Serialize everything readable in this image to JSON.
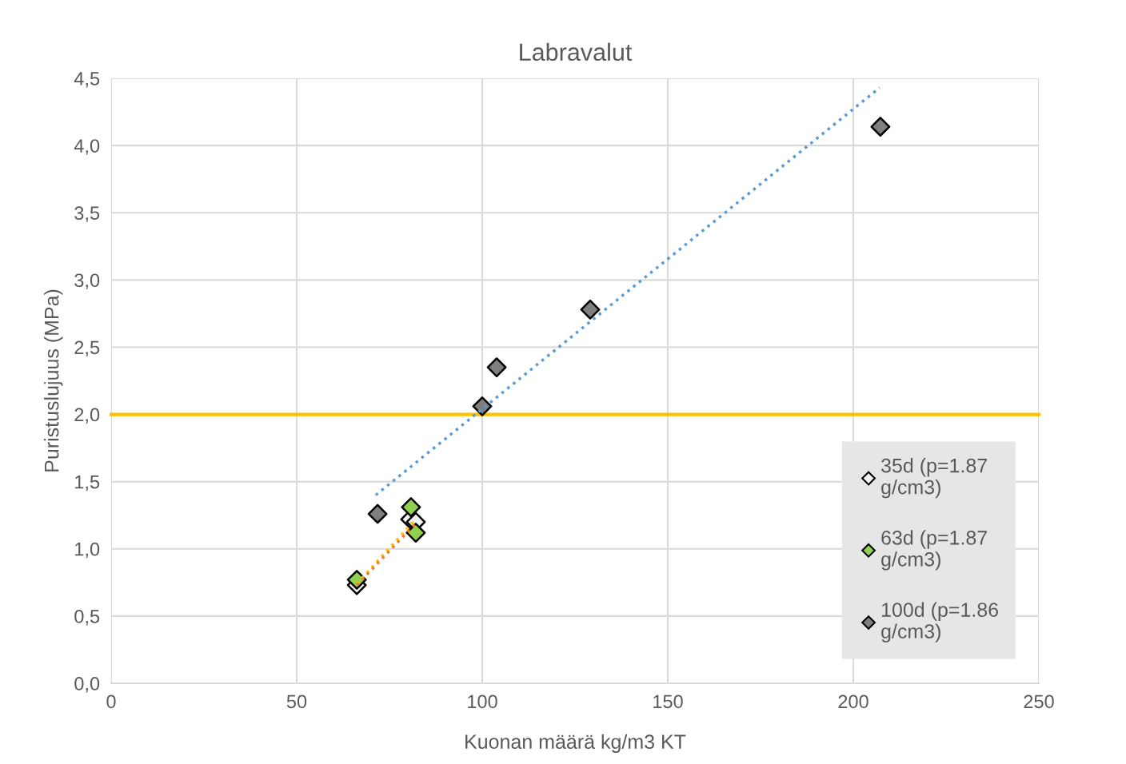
{
  "chart_data": {
    "type": "scatter",
    "title": "Labravalut",
    "xlabel": "Kuonan määrä kg/m3 KT",
    "ylabel": "Puristuslujuus (MPa)",
    "xlim": [
      0,
      250
    ],
    "xticks": [
      0,
      50,
      100,
      150,
      200,
      250
    ],
    "ylim": [
      0,
      4.5
    ],
    "yticks": [
      {
        "value": 0,
        "label": "0,0"
      },
      {
        "value": 0.5,
        "label": "0,5"
      },
      {
        "value": 1,
        "label": "1,0"
      },
      {
        "value": 1.5,
        "label": "1,5"
      },
      {
        "value": 2,
        "label": "2,0"
      },
      {
        "value": 2.5,
        "label": "2,5"
      },
      {
        "value": 3,
        "label": "3,0"
      },
      {
        "value": 3.5,
        "label": "3,5"
      },
      {
        "value": 4,
        "label": "4,0"
      },
      {
        "value": 4.5,
        "label": "4,5"
      }
    ],
    "grid": true,
    "legend": "right",
    "marker": "diamond",
    "ref_lines": [
      {
        "axis": "y",
        "value": 2.0,
        "color": "#ffc000"
      }
    ],
    "series": [
      {
        "type": "line",
        "line_style": "dotted",
        "marker": "none",
        "color": "#ffc000",
        "x": [
          66.2,
          82.1
        ],
        "values": [
          0.74,
          1.22
        ]
      },
      {
        "type": "line",
        "line_style": "dotted",
        "marker": "none",
        "color": "#ed7d31",
        "x": [
          66.2,
          82.1
        ],
        "values": [
          0.73,
          1.19
        ]
      },
      {
        "type": "line",
        "line_style": "dotted",
        "marker": "none",
        "color": "#5b9bd5",
        "x": [
          71.3,
          207.1
        ],
        "values": [
          1.4,
          4.43
        ]
      },
      {
        "name": "35d (p=1.87 g/cm3)",
        "color": "#f2f2f2",
        "x": [
          66.2,
          80.6,
          82.1
        ],
        "values": [
          0.73,
          1.22,
          1.2
        ]
      },
      {
        "name": "63d (p=1.87 g/cm3)",
        "color": "#92d050",
        "x": [
          66.2,
          80.8,
          82.1
        ],
        "values": [
          0.77,
          1.31,
          1.12
        ]
      },
      {
        "name": "100d (p=1.86 g/cm3)",
        "color": "#7f7f7f",
        "x": [
          71.8,
          100.0,
          103.9,
          129.1,
          207.3
        ],
        "values": [
          1.26,
          2.06,
          2.35,
          2.78,
          4.14
        ]
      }
    ]
  }
}
